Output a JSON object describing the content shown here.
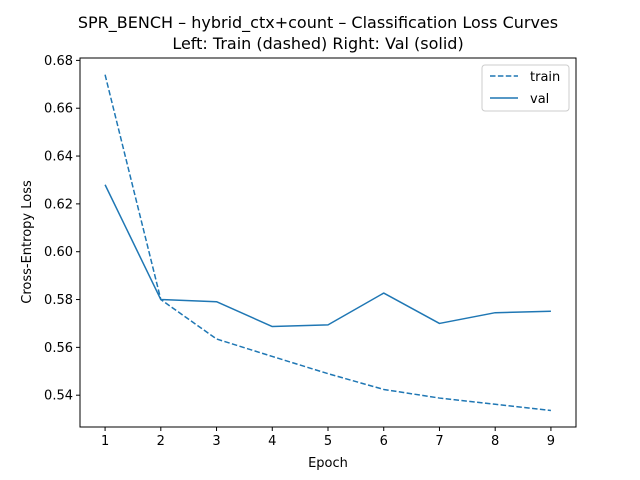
{
  "chart_data": {
    "type": "line",
    "title": "SPR_BENCH – hybrid_ctx+count – Classification Loss Curves",
    "subtitle": "Left: Train (dashed)  Right: Val (solid)",
    "xlabel": "Epoch",
    "ylabel": "Cross-Entropy Loss",
    "x": [
      1,
      2,
      3,
      4,
      5,
      6,
      7,
      8,
      9
    ],
    "xlim": [
      0.55,
      9.45
    ],
    "ylim": [
      0.5267,
      0.681
    ],
    "yticks": [
      0.54,
      0.56,
      0.58,
      0.6,
      0.62,
      0.64,
      0.66,
      0.68
    ],
    "ytick_labels": [
      "0.54",
      "0.56",
      "0.58",
      "0.60",
      "0.62",
      "0.64",
      "0.66",
      "0.68"
    ],
    "xticks": [
      1,
      2,
      3,
      4,
      5,
      6,
      7,
      8,
      9
    ],
    "xtick_labels": [
      "1",
      "2",
      "3",
      "4",
      "5",
      "6",
      "7",
      "8",
      "9"
    ],
    "grid": false,
    "legend_position": "top-right",
    "series": [
      {
        "name": "train",
        "style": "dashed",
        "color": "#1f77b4",
        "values": [
          0.674,
          0.58,
          0.5635,
          0.5562,
          0.549,
          0.5424,
          0.5388,
          0.5362,
          0.5336
        ]
      },
      {
        "name": "val",
        "style": "solid",
        "color": "#1f77b4",
        "values": [
          0.628,
          0.58,
          0.5791,
          0.5687,
          0.5694,
          0.5827,
          0.57,
          0.5745,
          0.5751
        ]
      }
    ]
  }
}
